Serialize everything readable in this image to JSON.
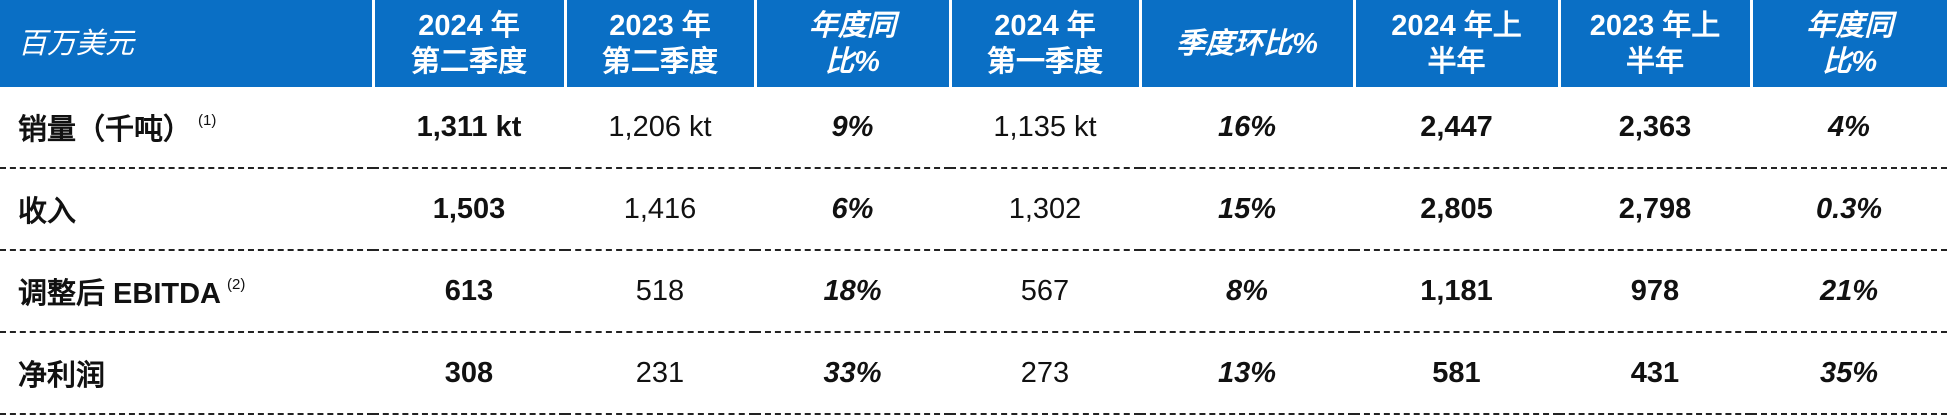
{
  "table": {
    "header": [
      "百万美元",
      "2024 年\n第二季度",
      "2023 年\n第二季度",
      "年度同\n比%",
      "2024 年\n第一季度",
      "季度环比%",
      "2024 年上\n半年",
      "2023 年上\n半年",
      "年度同\n比%"
    ],
    "rows": [
      {
        "label": "销量（千吨）",
        "note": "(1)",
        "cells": [
          "1,311 kt",
          "1,206 kt",
          "9%",
          "1,135 kt",
          "16%",
          "2,447",
          "2,363",
          "4%"
        ]
      },
      {
        "label": "收入",
        "cells": [
          "1,503",
          "1,416",
          "6%",
          "1,302",
          "15%",
          "2,805",
          "2,798",
          "0.3%"
        ]
      },
      {
        "label": "调整后 EBITDA",
        "note": "(2)",
        "cells": [
          "613",
          "518",
          "18%",
          "567",
          "8%",
          "1,181",
          "978",
          "21%"
        ]
      },
      {
        "label": "净利润",
        "cells": [
          "308",
          "231",
          "33%",
          "273",
          "13%",
          "581",
          "431",
          "35%"
        ]
      }
    ]
  }
}
